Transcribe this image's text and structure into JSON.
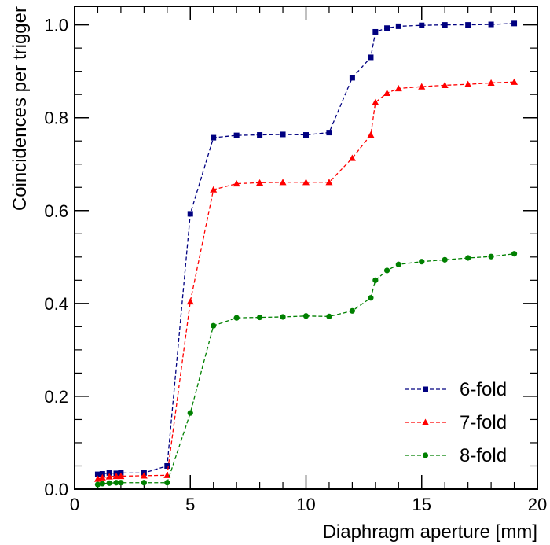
{
  "chart_data": {
    "type": "line",
    "xlabel": "Diaphragm aperture [mm]",
    "ylabel": "Coincidences per trigger",
    "xlim": [
      0,
      20
    ],
    "ylim": [
      0,
      1.04
    ],
    "x_ticks": [
      "0",
      "5",
      "10",
      "15",
      "20"
    ],
    "y_ticks": [
      "0.0",
      "0.2",
      "0.4",
      "0.6",
      "0.8",
      "1.0"
    ],
    "grid": false,
    "legend_position": "bottom-right",
    "series": [
      {
        "name": "6-fold",
        "color": "#000080",
        "marker": "square",
        "x": [
          1,
          1.2,
          1.5,
          1.8,
          2,
          3,
          4,
          5,
          6,
          7,
          8,
          9,
          10,
          11,
          12,
          12.8,
          13,
          13.5,
          14,
          15,
          16,
          17,
          18,
          19
        ],
        "y": [
          0.032,
          0.033,
          0.035,
          0.034,
          0.035,
          0.035,
          0.05,
          0.593,
          0.757,
          0.762,
          0.763,
          0.764,
          0.763,
          0.768,
          0.886,
          0.93,
          0.985,
          0.993,
          0.997,
          0.999,
          1.0,
          1.0,
          1.001,
          1.003
        ]
      },
      {
        "name": "7-fold",
        "color": "#ff0000",
        "marker": "triangle",
        "x": [
          1,
          1.2,
          1.5,
          1.8,
          2,
          3,
          4,
          5,
          6,
          7,
          8,
          9,
          10,
          11,
          12,
          12.8,
          13,
          13.5,
          14,
          15,
          16,
          17,
          18,
          19
        ],
        "y": [
          0.022,
          0.025,
          0.027,
          0.028,
          0.028,
          0.029,
          0.03,
          0.404,
          0.645,
          0.658,
          0.66,
          0.661,
          0.661,
          0.661,
          0.713,
          0.763,
          0.833,
          0.853,
          0.863,
          0.867,
          0.87,
          0.872,
          0.875,
          0.877
        ]
      },
      {
        "name": "8-fold",
        "color": "#008000",
        "marker": "circle",
        "x": [
          1,
          1.2,
          1.5,
          1.8,
          2,
          3,
          4,
          5,
          6,
          7,
          8,
          9,
          10,
          11,
          12,
          12.8,
          13,
          13.5,
          14,
          15,
          16,
          17,
          18,
          19
        ],
        "y": [
          0.01,
          0.012,
          0.013,
          0.014,
          0.014,
          0.014,
          0.014,
          0.164,
          0.352,
          0.369,
          0.37,
          0.371,
          0.373,
          0.372,
          0.384,
          0.412,
          0.45,
          0.471,
          0.484,
          0.49,
          0.494,
          0.498,
          0.501,
          0.507
        ]
      }
    ]
  }
}
